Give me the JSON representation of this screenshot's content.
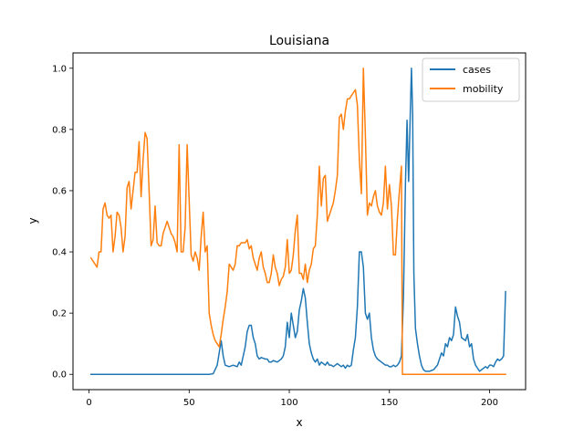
{
  "chart_data": {
    "type": "line",
    "title": "Louisiana",
    "xlabel": "x",
    "ylabel": "y",
    "xlim": [
      -8,
      218
    ],
    "ylim": [
      -0.05,
      1.05
    ],
    "xticks": [
      0,
      50,
      100,
      150,
      200
    ],
    "xtick_labels": [
      "0",
      "50",
      "100",
      "150",
      "200"
    ],
    "yticks": [
      0.0,
      0.2,
      0.4,
      0.6,
      0.8,
      1.0
    ],
    "ytick_labels": [
      "0.0",
      "0.2",
      "0.4",
      "0.6",
      "0.8",
      "1.0"
    ],
    "grid": false,
    "legend_position": "top-right",
    "series": [
      {
        "name": "cases",
        "color": "#1f77b4",
        "points": [
          [
            1,
            0
          ],
          [
            10,
            0
          ],
          [
            20,
            0
          ],
          [
            30,
            0
          ],
          [
            40,
            0
          ],
          [
            50,
            0
          ],
          [
            60,
            0
          ],
          [
            62,
            0.002
          ],
          [
            64,
            0.03
          ],
          [
            65,
            0.07
          ],
          [
            66,
            0.11
          ],
          [
            67,
            0.06
          ],
          [
            68,
            0.03
          ],
          [
            70,
            0.025
          ],
          [
            72,
            0.03
          ],
          [
            74,
            0.025
          ],
          [
            75,
            0.04
          ],
          [
            76,
            0.03
          ],
          [
            77,
            0.06
          ],
          [
            78,
            0.09
          ],
          [
            79,
            0.14
          ],
          [
            80,
            0.16
          ],
          [
            81,
            0.16
          ],
          [
            82,
            0.12
          ],
          [
            83,
            0.1
          ],
          [
            84,
            0.06
          ],
          [
            85,
            0.05
          ],
          [
            86,
            0.055
          ],
          [
            88,
            0.05
          ],
          [
            89,
            0.05
          ],
          [
            90,
            0.04
          ],
          [
            91,
            0.04
          ],
          [
            92,
            0.045
          ],
          [
            94,
            0.04
          ],
          [
            96,
            0.05
          ],
          [
            97,
            0.06
          ],
          [
            98,
            0.09
          ],
          [
            99,
            0.17
          ],
          [
            100,
            0.12
          ],
          [
            101,
            0.2
          ],
          [
            102,
            0.16
          ],
          [
            103,
            0.12
          ],
          [
            104,
            0.14
          ],
          [
            105,
            0.21
          ],
          [
            106,
            0.24
          ],
          [
            107,
            0.28
          ],
          [
            108,
            0.25
          ],
          [
            109,
            0.17
          ],
          [
            110,
            0.1
          ],
          [
            111,
            0.07
          ],
          [
            112,
            0.05
          ],
          [
            113,
            0.04
          ],
          [
            114,
            0.05
          ],
          [
            115,
            0.03
          ],
          [
            116,
            0.04
          ],
          [
            117,
            0.035
          ],
          [
            118,
            0.03
          ],
          [
            119,
            0.04
          ],
          [
            120,
            0.03
          ],
          [
            121,
            0.03
          ],
          [
            122,
            0.025
          ],
          [
            123,
            0.03
          ],
          [
            124,
            0.035
          ],
          [
            125,
            0.03
          ],
          [
            126,
            0.025
          ],
          [
            127,
            0.03
          ],
          [
            128,
            0.02
          ],
          [
            129,
            0.03
          ],
          [
            130,
            0.025
          ],
          [
            131,
            0.03
          ],
          [
            132,
            0.08
          ],
          [
            133,
            0.12
          ],
          [
            134,
            0.22
          ],
          [
            135,
            0.4
          ],
          [
            136,
            0.4
          ],
          [
            137,
            0.35
          ],
          [
            138,
            0.2
          ],
          [
            139,
            0.18
          ],
          [
            140,
            0.2
          ],
          [
            141,
            0.12
          ],
          [
            142,
            0.08
          ],
          [
            143,
            0.06
          ],
          [
            144,
            0.05
          ],
          [
            145,
            0.045
          ],
          [
            146,
            0.04
          ],
          [
            147,
            0.035
          ],
          [
            148,
            0.03
          ],
          [
            149,
            0.03
          ],
          [
            150,
            0.025
          ],
          [
            151,
            0.025
          ],
          [
            152,
            0.03
          ],
          [
            153,
            0.025
          ],
          [
            154,
            0.03
          ],
          [
            155,
            0.04
          ],
          [
            156,
            0.06
          ],
          [
            157,
            0.25
          ],
          [
            158,
            0.62
          ],
          [
            158.8,
            0.83
          ],
          [
            159.6,
            0.63
          ],
          [
            160.4,
            0.85
          ],
          [
            161,
            1.0
          ],
          [
            161.6,
            0.85
          ],
          [
            162.2,
            0.33
          ],
          [
            163,
            0.15
          ],
          [
            164,
            0.1
          ],
          [
            165,
            0.06
          ],
          [
            166,
            0.03
          ],
          [
            167,
            0.015
          ],
          [
            168,
            0.01
          ],
          [
            170,
            0.01
          ],
          [
            172,
            0.015
          ],
          [
            174,
            0.03
          ],
          [
            175,
            0.05
          ],
          [
            176,
            0.07
          ],
          [
            177,
            0.06
          ],
          [
            178,
            0.1
          ],
          [
            179,
            0.09
          ],
          [
            180,
            0.12
          ],
          [
            181,
            0.11
          ],
          [
            182,
            0.13
          ],
          [
            183,
            0.22
          ],
          [
            184,
            0.19
          ],
          [
            185,
            0.17
          ],
          [
            186,
            0.12
          ],
          [
            187,
            0.115
          ],
          [
            188,
            0.11
          ],
          [
            189,
            0.13
          ],
          [
            190,
            0.09
          ],
          [
            191,
            0.1
          ],
          [
            192,
            0.05
          ],
          [
            193,
            0.03
          ],
          [
            194,
            0.02
          ],
          [
            195,
            0.01
          ],
          [
            196,
            0.015
          ],
          [
            197,
            0.02
          ],
          [
            198,
            0.025
          ],
          [
            199,
            0.02
          ],
          [
            200,
            0.03
          ],
          [
            201,
            0.03
          ],
          [
            202,
            0.025
          ],
          [
            203,
            0.04
          ],
          [
            204,
            0.05
          ],
          [
            205,
            0.045
          ],
          [
            206,
            0.05
          ],
          [
            207,
            0.06
          ],
          [
            208,
            0.27
          ]
        ]
      },
      {
        "name": "mobility",
        "color": "#ff7f0e",
        "points": [
          [
            1,
            0.38
          ],
          [
            2,
            0.37
          ],
          [
            3,
            0.36
          ],
          [
            4,
            0.35
          ],
          [
            5,
            0.4
          ],
          [
            6,
            0.4
          ],
          [
            7,
            0.54
          ],
          [
            8,
            0.56
          ],
          [
            9,
            0.52
          ],
          [
            10,
            0.51
          ],
          [
            11,
            0.52
          ],
          [
            12,
            0.4
          ],
          [
            13,
            0.45
          ],
          [
            14,
            0.53
          ],
          [
            15,
            0.52
          ],
          [
            16,
            0.48
          ],
          [
            17,
            0.4
          ],
          [
            18,
            0.45
          ],
          [
            19,
            0.61
          ],
          [
            20,
            0.63
          ],
          [
            21,
            0.54
          ],
          [
            22,
            0.6
          ],
          [
            23,
            0.66
          ],
          [
            24,
            0.66
          ],
          [
            25,
            0.76
          ],
          [
            26,
            0.58
          ],
          [
            27,
            0.7
          ],
          [
            28,
            0.79
          ],
          [
            29,
            0.77
          ],
          [
            30,
            0.6
          ],
          [
            31,
            0.42
          ],
          [
            32,
            0.44
          ],
          [
            33,
            0.55
          ],
          [
            34,
            0.43
          ],
          [
            35,
            0.42
          ],
          [
            36,
            0.42
          ],
          [
            37,
            0.46
          ],
          [
            38,
            0.48
          ],
          [
            39,
            0.5
          ],
          [
            40,
            0.48
          ],
          [
            41,
            0.46
          ],
          [
            42,
            0.45
          ],
          [
            43,
            0.43
          ],
          [
            44,
            0.4
          ],
          [
            45,
            0.75
          ],
          [
            46,
            0.4
          ],
          [
            47,
            0.4
          ],
          [
            48,
            0.48
          ],
          [
            49,
            0.75
          ],
          [
            50,
            0.57
          ],
          [
            51,
            0.39
          ],
          [
            52,
            0.37
          ],
          [
            53,
            0.4
          ],
          [
            54,
            0.38
          ],
          [
            55,
            0.34
          ],
          [
            56,
            0.45
          ],
          [
            57,
            0.53
          ],
          [
            58,
            0.4
          ],
          [
            59,
            0.42
          ],
          [
            60,
            0.2
          ],
          [
            61,
            0.16
          ],
          [
            62,
            0.13
          ],
          [
            63,
            0.11
          ],
          [
            64,
            0.1
          ],
          [
            65,
            0.09
          ],
          [
            66,
            0.13
          ],
          [
            67,
            0.18
          ],
          [
            68,
            0.22
          ],
          [
            69,
            0.27
          ],
          [
            70,
            0.36
          ],
          [
            71,
            0.35
          ],
          [
            72,
            0.34
          ],
          [
            73,
            0.36
          ],
          [
            74,
            0.42
          ],
          [
            75,
            0.42
          ],
          [
            76,
            0.43
          ],
          [
            77,
            0.43
          ],
          [
            78,
            0.43
          ],
          [
            79,
            0.44
          ],
          [
            80,
            0.41
          ],
          [
            81,
            0.42
          ],
          [
            82,
            0.38
          ],
          [
            83,
            0.36
          ],
          [
            84,
            0.34
          ],
          [
            85,
            0.38
          ],
          [
            86,
            0.4
          ],
          [
            87,
            0.35
          ],
          [
            88,
            0.33
          ],
          [
            89,
            0.3
          ],
          [
            90,
            0.3
          ],
          [
            91,
            0.33
          ],
          [
            92,
            0.39
          ],
          [
            93,
            0.35
          ],
          [
            94,
            0.33
          ],
          [
            95,
            0.29
          ],
          [
            96,
            0.31
          ],
          [
            97,
            0.32
          ],
          [
            98,
            0.35
          ],
          [
            99,
            0.44
          ],
          [
            100,
            0.33
          ],
          [
            101,
            0.34
          ],
          [
            102,
            0.39
          ],
          [
            103,
            0.47
          ],
          [
            104,
            0.52
          ],
          [
            105,
            0.33
          ],
          [
            106,
            0.33
          ],
          [
            107,
            0.31
          ],
          [
            108,
            0.36
          ],
          [
            109,
            0.3
          ],
          [
            110,
            0.34
          ],
          [
            111,
            0.36
          ],
          [
            112,
            0.41
          ],
          [
            113,
            0.42
          ],
          [
            114,
            0.52
          ],
          [
            115,
            0.68
          ],
          [
            116,
            0.55
          ],
          [
            117,
            0.64
          ],
          [
            118,
            0.65
          ],
          [
            119,
            0.5
          ],
          [
            120,
            0.52
          ],
          [
            121,
            0.54
          ],
          [
            122,
            0.56
          ],
          [
            123,
            0.6
          ],
          [
            124,
            0.65
          ],
          [
            125,
            0.84
          ],
          [
            126,
            0.85
          ],
          [
            127,
            0.8
          ],
          [
            128,
            0.86
          ],
          [
            129,
            0.9
          ],
          [
            130,
            0.9
          ],
          [
            131,
            0.91
          ],
          [
            132,
            0.92
          ],
          [
            133,
            0.93
          ],
          [
            134,
            0.88
          ],
          [
            135,
            0.7
          ],
          [
            136,
            0.59
          ],
          [
            137,
            1.0
          ],
          [
            138,
            0.78
          ],
          [
            139,
            0.52
          ],
          [
            140,
            0.56
          ],
          [
            141,
            0.55
          ],
          [
            142,
            0.58
          ],
          [
            143,
            0.6
          ],
          [
            144,
            0.55
          ],
          [
            145,
            0.53
          ],
          [
            146,
            0.52
          ],
          [
            147,
            0.56
          ],
          [
            148,
            0.68
          ],
          [
            149,
            0.54
          ],
          [
            150,
            0.62
          ],
          [
            151,
            0.55
          ],
          [
            152,
            0.39
          ],
          [
            153,
            0.39
          ],
          [
            154,
            0.51
          ],
          [
            155,
            0.6
          ],
          [
            156,
            0.68
          ],
          [
            156.5,
            0.0
          ],
          [
            208,
            0.0
          ]
        ]
      }
    ]
  }
}
